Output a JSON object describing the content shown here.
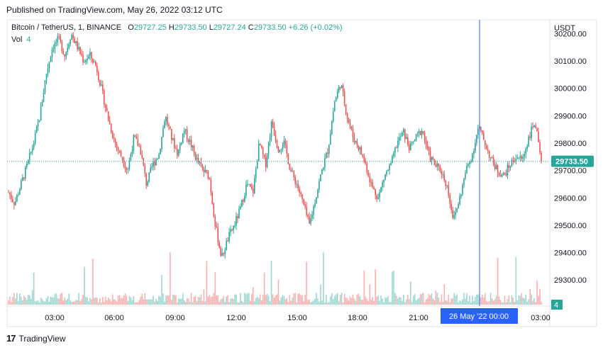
{
  "published": "Published on TradingView.com, May 26, 2022 03:12 UTC",
  "legend": {
    "symbol": "Bitcoin / TetherUS, 1, BINANCE",
    "o_label": "O",
    "o": "29727.25",
    "h_label": "H",
    "h": "29733.50",
    "l_label": "L",
    "l": "29727.24",
    "c_label": "C",
    "c": "29733.50",
    "change": "+6.26 (+0.02%)"
  },
  "vol": {
    "label": "Vol",
    "value": "4"
  },
  "currency": "USDT",
  "last_price": "29733.50",
  "last_volume": "4",
  "crosshair_label": "26 May '22   00:00",
  "footer": {
    "logo": "17",
    "brand": "TradingView"
  },
  "colors": {
    "up": "#26a69a",
    "down": "#ef5350",
    "crosshair": "#2962ff",
    "last": "#26a69a"
  },
  "chart_data": {
    "type": "candlestick",
    "y_ticks": [
      30200,
      30100,
      30000,
      29900,
      29800,
      29700,
      29600,
      29500,
      29400,
      29300
    ],
    "y_tick_labels": [
      "30200.00",
      "30100.00",
      "30000.00",
      "29900.00",
      "29800.00",
      "29700.00",
      "29600.00",
      "29500.00",
      "29400.00",
      "29300.00"
    ],
    "x_tick_labels": [
      "03:00",
      "06:00",
      "09:00",
      "12:00",
      "15:00",
      "18:00",
      "21:00",
      "03:00"
    ],
    "ylim": [
      29210,
      30250
    ],
    "path": [
      29620,
      29580,
      29650,
      29720,
      29800,
      29900,
      30050,
      30150,
      30180,
      30120,
      30200,
      30150,
      30100,
      30120,
      30080,
      29980,
      29880,
      29800,
      29750,
      29700,
      29820,
      29780,
      29650,
      29720,
      29760,
      29900,
      29820,
      29760,
      29850,
      29800,
      29740,
      29700,
      29680,
      29500,
      29380,
      29450,
      29500,
      29560,
      29650,
      29620,
      29800,
      29720,
      29880,
      29780,
      29800,
      29700,
      29650,
      29580,
      29500,
      29600,
      29700,
      29780,
      29950,
      30020,
      29900,
      29820,
      29780,
      29720,
      29640,
      29600,
      29680,
      29720,
      29800,
      29840,
      29780,
      29820,
      29850,
      29760,
      29720,
      29700,
      29640,
      29520,
      29600,
      29700,
      29760,
      29860,
      29800,
      29740,
      29700,
      29680,
      29720,
      29750,
      29740,
      29820,
      29880,
      29720
    ],
    "volume_note": "volume bars shown along the bottom"
  }
}
